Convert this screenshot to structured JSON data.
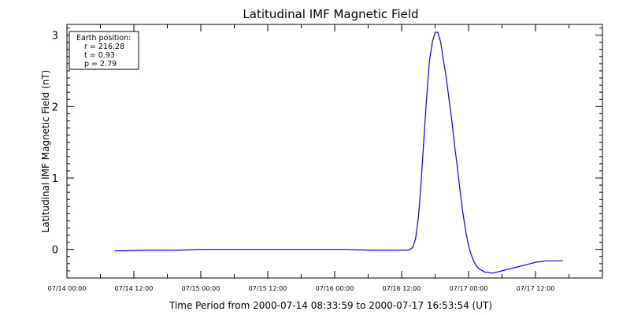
{
  "chart_data": {
    "type": "line",
    "title": "Latitudinal IMF Magnetic Field",
    "xlabel": "Time Period from 2000-07-14 08:33:59 to 2000-07-17 16:53:54 (UT)",
    "ylabel": "Latitudinal IMF Magnetic Field (nT)",
    "x_tick_labels": [
      "07/14 00:00",
      "07/14 12:00",
      "07/15 00:00",
      "07/15 12:00",
      "07/16 00:00",
      "07/16 12:00",
      "07/17 00:00",
      "07/17 12:00"
    ],
    "y_tick_labels": [
      "0",
      "1",
      "2",
      "3"
    ],
    "xlim_hours": [
      0,
      96
    ],
    "ylim": [
      -0.4,
      3.15
    ],
    "legend_placement": "top-left",
    "annotation": {
      "heading": "Earth position:",
      "lines": [
        "r = 216.28",
        "t = 0.93",
        "p = 2.79"
      ]
    },
    "series": [
      {
        "color": "#0000ff",
        "x_hours": [
          8.57,
          10,
          14,
          20,
          24,
          30,
          36,
          42,
          48,
          50,
          54,
          58,
          60,
          61,
          61.5,
          62,
          62.5,
          63,
          63.5,
          64,
          64.5,
          65,
          65.5,
          66,
          66.5,
          67,
          67.5,
          68,
          68.5,
          69,
          69.5,
          70,
          70.5,
          71,
          71.5,
          72,
          72.5,
          73,
          73.5,
          74,
          74.5,
          75,
          75.5,
          76,
          76.5,
          77,
          78,
          79,
          80,
          81,
          82,
          83,
          84,
          85,
          86,
          87,
          88,
          88.9
        ],
        "y_values": [
          -0.02,
          -0.02,
          -0.01,
          -0.01,
          0.0,
          0.0,
          0.0,
          0.0,
          0.0,
          0.0,
          -0.01,
          -0.01,
          -0.01,
          -0.01,
          0.0,
          0.03,
          0.15,
          0.45,
          0.95,
          1.55,
          2.15,
          2.65,
          2.9,
          3.04,
          3.04,
          2.9,
          2.65,
          2.4,
          2.1,
          1.8,
          1.45,
          1.15,
          0.8,
          0.5,
          0.25,
          0.05,
          -0.08,
          -0.18,
          -0.24,
          -0.28,
          -0.3,
          -0.32,
          -0.32,
          -0.33,
          -0.33,
          -0.32,
          -0.3,
          -0.28,
          -0.26,
          -0.24,
          -0.22,
          -0.2,
          -0.18,
          -0.17,
          -0.16,
          -0.16,
          -0.16,
          -0.16
        ]
      }
    ]
  }
}
